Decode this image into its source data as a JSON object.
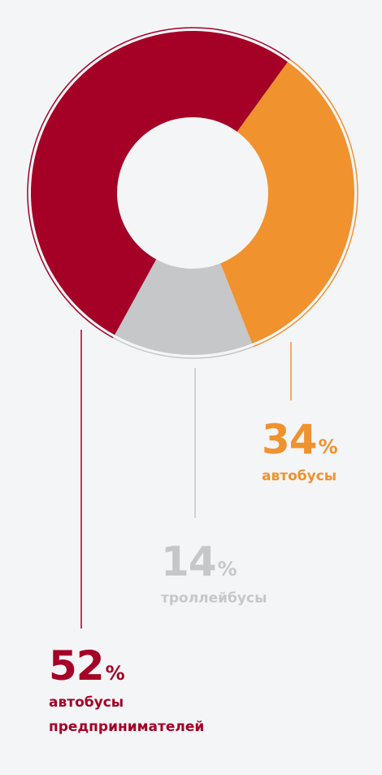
{
  "chart_data": {
    "type": "donut",
    "categories": [
      "автобусы",
      "троллейбусы",
      "автобусы предпринимателей"
    ],
    "values": [
      34,
      14,
      52
    ],
    "unit": "%",
    "colors": [
      "#f0922e",
      "#c5c7c9",
      "#a50026"
    ]
  }
}
